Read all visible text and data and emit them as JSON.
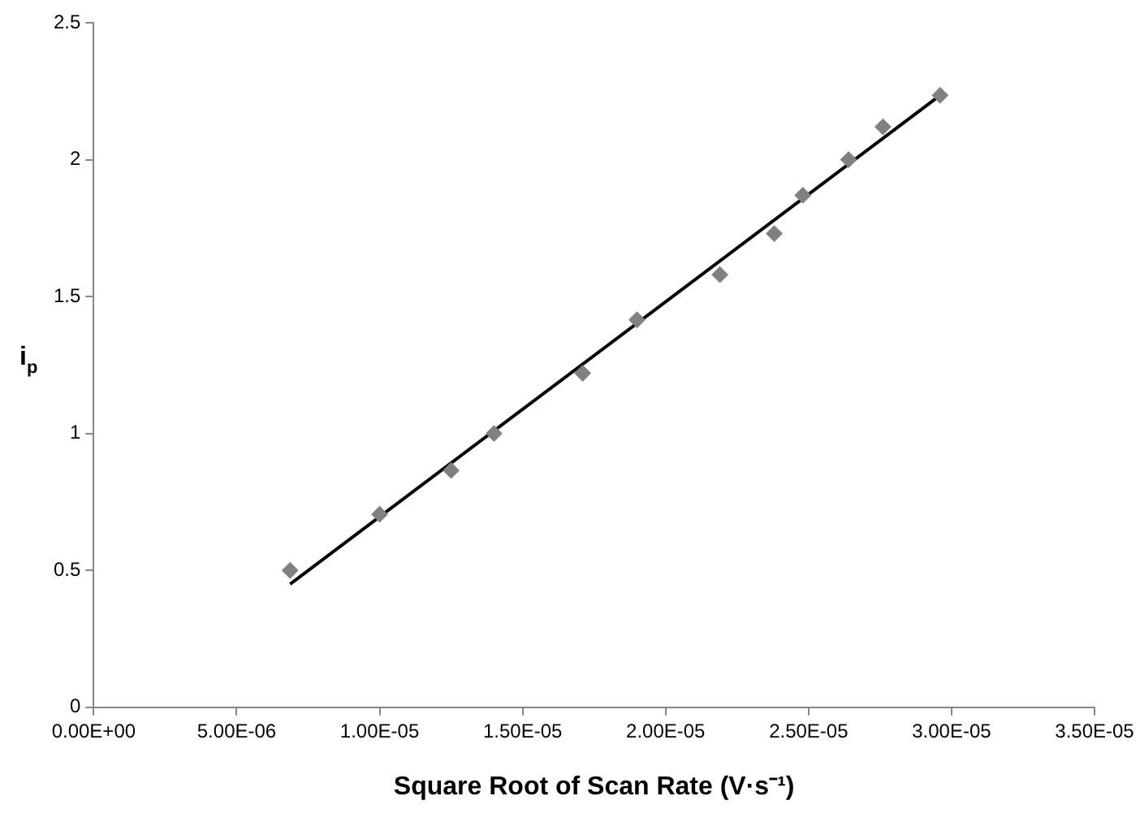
{
  "chart_data": {
    "type": "scatter",
    "xlabel": "Square Root of Scan Rate (V·s⁻¹)",
    "ylabel": "i$_{p}$",
    "xlim": [
      0,
      3.5e-05
    ],
    "ylim": [
      0,
      2.5
    ],
    "xticks": [
      {
        "value": 0,
        "label": "0.00E+00"
      },
      {
        "value": 5e-06,
        "label": "5.00E-06"
      },
      {
        "value": 1e-05,
        "label": "1.00E-05"
      },
      {
        "value": 1.5e-05,
        "label": "1.50E-05"
      },
      {
        "value": 2e-05,
        "label": "2.00E-05"
      },
      {
        "value": 2.5e-05,
        "label": "2.50E-05"
      },
      {
        "value": 3e-05,
        "label": "3.00E-05"
      },
      {
        "value": 3.5e-05,
        "label": "3.50E-05"
      }
    ],
    "yticks": [
      0,
      0.5,
      1,
      1.5,
      2,
      2.5
    ],
    "grid": false,
    "legend": false,
    "series": [
      {
        "color": "#808080",
        "marker": "diamond",
        "x": [
          6.87e-06,
          1e-05,
          1.25e-05,
          1.4e-05,
          1.71e-05,
          1.9e-05,
          2.19e-05,
          2.38e-05,
          2.48e-05,
          2.64e-05,
          2.76e-05,
          2.96e-05
        ],
        "values": [
          0.5,
          0.705,
          0.865,
          1.0,
          1.22,
          1.415,
          1.58,
          1.73,
          1.87,
          2.0,
          2.12,
          2.235
        ]
      },
      {
        "type": "line",
        "color": "#000000",
        "marker": "none",
        "line_style": "solid",
        "x": [
          6.87e-06,
          2.96e-05
        ],
        "values": [
          0.45,
          2.235
        ]
      }
    ]
  }
}
